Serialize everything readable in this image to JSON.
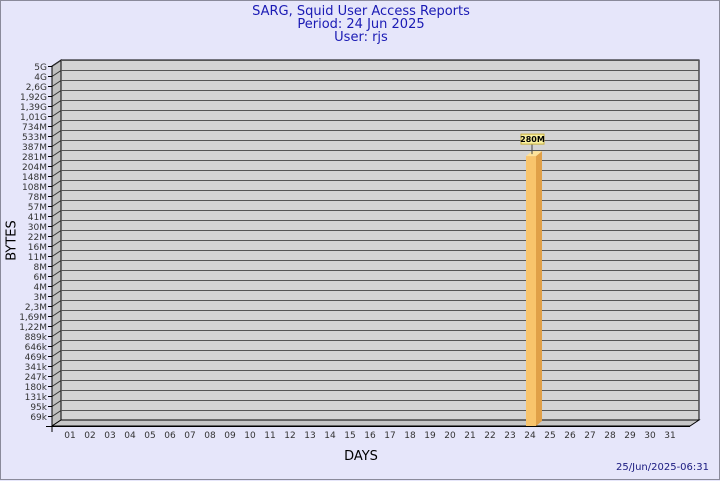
{
  "header": {
    "title": "SARG, Squid User Access Reports",
    "period": "Period: 24 Jun 2025",
    "user": "User: rjs"
  },
  "footer": {
    "timestamp": "25/Jun/2025-06:31"
  },
  "chart_data": {
    "type": "bar",
    "title": "SARG, Squid User Access Reports",
    "xlabel": "DAYS",
    "ylabel": "BYTES",
    "y_scale": "log",
    "y_tick_labels": [
      "5G",
      "4G",
      "2,6G",
      "1,92G",
      "1,39G",
      "1,01G",
      "734M",
      "533M",
      "387M",
      "281M",
      "204M",
      "148M",
      "108M",
      "78M",
      "57M",
      "41M",
      "30M",
      "22M",
      "16M",
      "11M",
      "8M",
      "6M",
      "4M",
      "3M",
      "2,3M",
      "1,69M",
      "1,22M",
      "889k",
      "646k",
      "469k",
      "341k",
      "247k",
      "180k",
      "131k",
      "95k",
      "69k"
    ],
    "categories": [
      "01",
      "02",
      "03",
      "04",
      "05",
      "06",
      "07",
      "08",
      "09",
      "10",
      "11",
      "12",
      "13",
      "14",
      "15",
      "16",
      "17",
      "18",
      "19",
      "20",
      "21",
      "22",
      "23",
      "24",
      "25",
      "26",
      "27",
      "28",
      "29",
      "30",
      "31"
    ],
    "bars": [
      {
        "day": "24",
        "value_bytes": 280000000,
        "label": "280M"
      }
    ],
    "grid": true,
    "colors": {
      "bar_front": "#f8c46c",
      "bar_side": "#e0a048",
      "bar_top": "#fde29a",
      "plot_bg": "#d4d4d4",
      "title": "#1a1ab4",
      "background": "#e6e6fa"
    }
  }
}
